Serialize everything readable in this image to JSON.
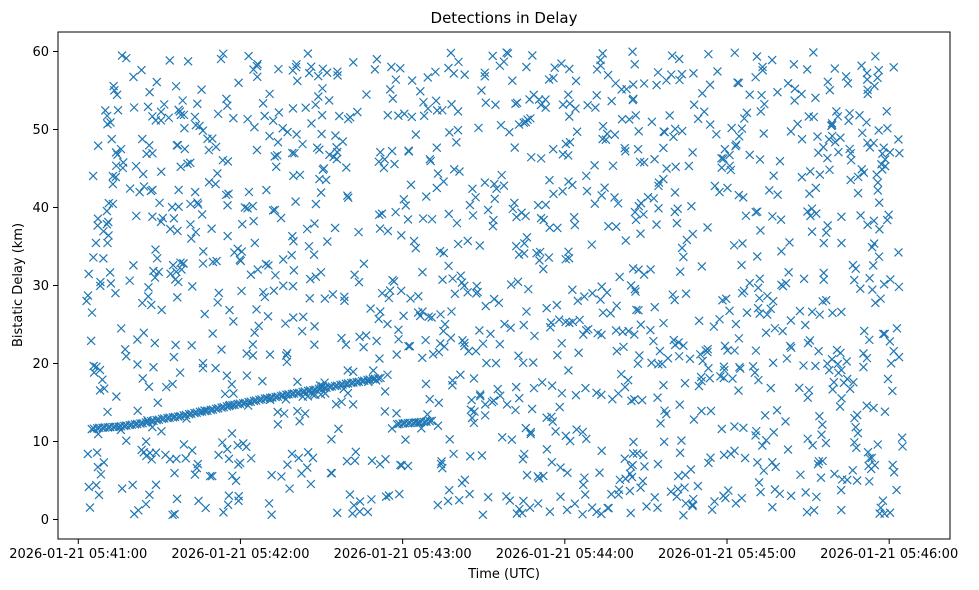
{
  "chart_data": {
    "type": "scatter",
    "title": "Detections in Delay",
    "xlabel": "Time (UTC)",
    "ylabel": "Bistatic Delay (km)",
    "x_unit": "seconds after 2026-01-21 05:41:00",
    "xlim": [
      -7.5,
      322.5
    ],
    "ylim": [
      -2.5,
      62.5
    ],
    "x_ticks": [
      {
        "value": 0,
        "label": "2026-01-21 05:41:00"
      },
      {
        "value": 60,
        "label": "2026-01-21 05:42:00"
      },
      {
        "value": 120,
        "label": "2026-01-21 05:43:00"
      },
      {
        "value": 180,
        "label": "2026-01-21 05:44:00"
      },
      {
        "value": 240,
        "label": "2026-01-21 05:45:00"
      },
      {
        "value": 300,
        "label": "2026-01-21 05:46:00"
      }
    ],
    "y_ticks": [
      0,
      10,
      20,
      30,
      40,
      50,
      60
    ],
    "marker": "x",
    "color": "#1f77b4",
    "grid": false,
    "noise_detections": {
      "description": "uniformly scattered false detections",
      "count": 1400,
      "x_range": [
        3,
        305
      ],
      "y_range": [
        0.5,
        60
      ]
    },
    "series": [
      {
        "name": "",
        "x": [
          5,
          7,
          9,
          11,
          13,
          15,
          17,
          19,
          21,
          23,
          25,
          27,
          29,
          31,
          33,
          35,
          37,
          39,
          41,
          43,
          45,
          47,
          49,
          51,
          53,
          55,
          57,
          59,
          61,
          63,
          65,
          67,
          69,
          71,
          73,
          75,
          77,
          79,
          81,
          83,
          85,
          87,
          89,
          91,
          93,
          95,
          97,
          99,
          101,
          103,
          105,
          107,
          109,
          111
        ],
        "y": [
          11.6,
          11.7,
          11.75,
          11.8,
          11.85,
          11.9,
          12.0,
          12.1,
          12.2,
          12.3,
          12.45,
          12.6,
          12.75,
          12.9,
          13.0,
          13.1,
          13.2,
          13.35,
          13.5,
          13.65,
          13.8,
          13.9,
          14.05,
          14.2,
          14.35,
          14.5,
          14.65,
          14.8,
          14.9,
          15.05,
          15.2,
          15.35,
          15.5,
          15.6,
          15.7,
          15.85,
          16.0,
          16.1,
          16.2,
          16.35,
          16.5,
          16.6,
          16.75,
          16.85,
          17.0,
          17.1,
          17.25,
          17.4,
          17.5,
          17.6,
          17.75,
          17.9,
          18.0,
          18.1
        ]
      },
      {
        "name": "",
        "x": [
          118,
          120,
          122,
          124,
          126,
          128,
          130
        ],
        "y": [
          12.2,
          12.3,
          12.35,
          12.4,
          12.45,
          12.5,
          12.6
        ]
      }
    ]
  }
}
